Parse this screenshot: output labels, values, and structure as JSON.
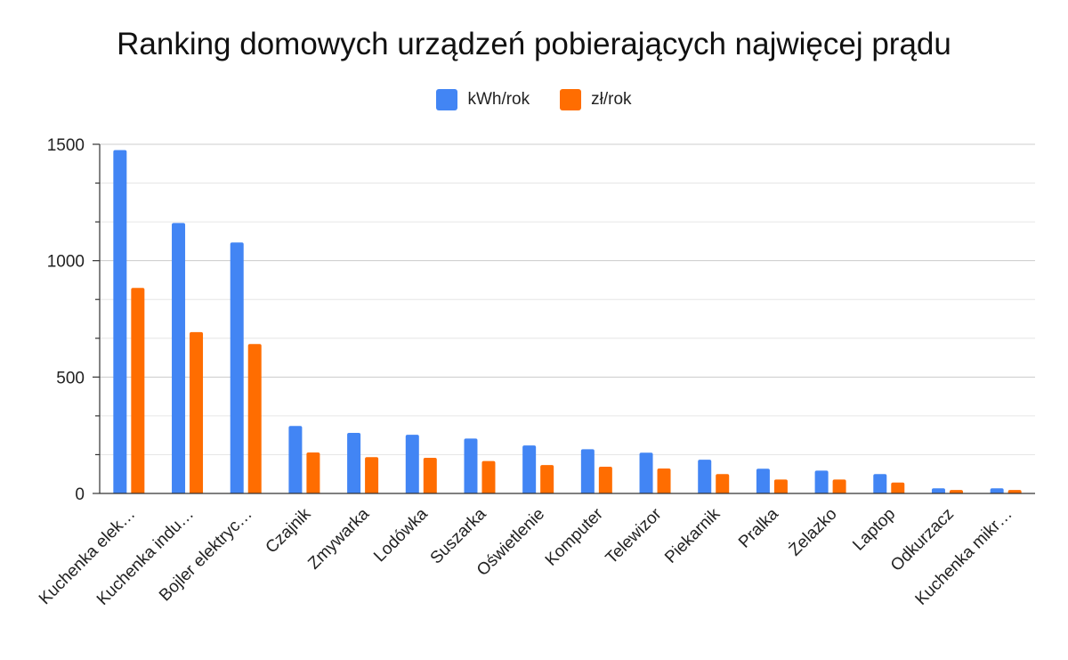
{
  "chart_data": {
    "type": "bar",
    "title": "Ranking domowych urządzeń pobierających najwięcej prądu",
    "xlabel": "",
    "ylabel": "",
    "ylim": [
      0,
      1500
    ],
    "yticks": [
      0,
      500,
      1000,
      1500
    ],
    "grid": true,
    "legend_position": "top",
    "categories": [
      "Kuchenka elek…",
      "Kuchenka indu…",
      "Bojler elektryc…",
      "Czajnik",
      "Zmywarka",
      "Lodówka",
      "Suszarka",
      "Oświetlenie",
      "Komputer",
      "Telewizor",
      "Piekarnik",
      "Pralka",
      "Żelazko",
      "Laptop",
      "Odkurzacz",
      "Kuchenka mikr…"
    ],
    "series": [
      {
        "name": "kWh/rok",
        "color": "#4285f4",
        "values": [
          1475,
          1162,
          1078,
          290,
          260,
          252,
          236,
          206,
          190,
          175,
          145,
          106,
          98,
          83,
          22,
          22
        ]
      },
      {
        "name": "zł/rok",
        "color": "#ff6d01",
        "values": [
          883,
          693,
          642,
          176,
          156,
          153,
          139,
          122,
          115,
          107,
          83,
          60,
          60,
          47,
          15,
          15
        ]
      }
    ]
  }
}
